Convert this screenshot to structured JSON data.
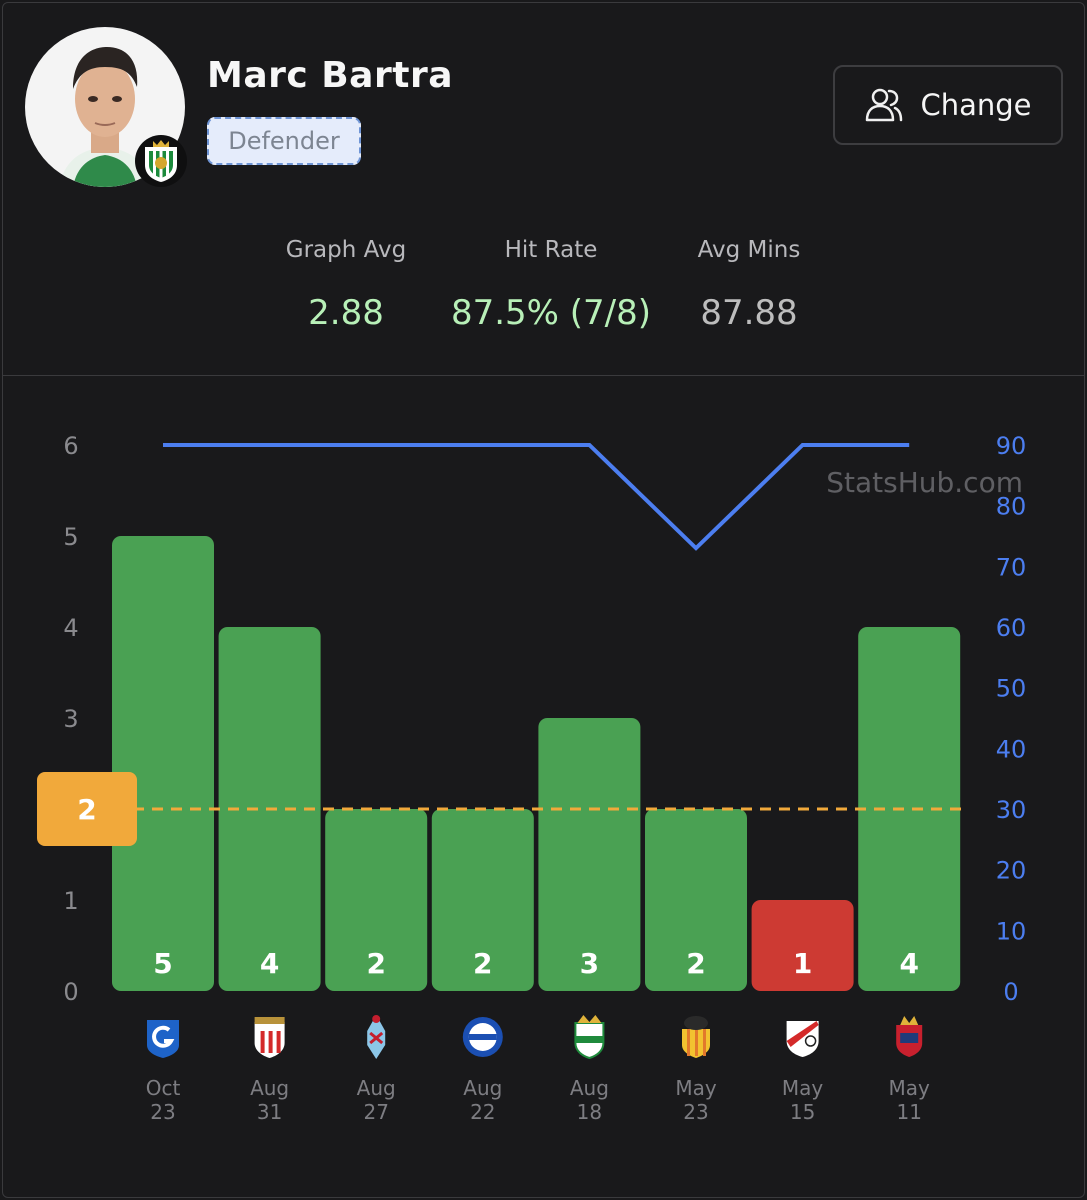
{
  "player": {
    "name": "Marc Bartra",
    "position": "Defender"
  },
  "actions": {
    "change_label": "Change"
  },
  "stats": [
    {
      "label": "Graph Avg",
      "value": "2.88",
      "tone": "green"
    },
    {
      "label": "Hit Rate",
      "value": "87.5% (7/8)",
      "tone": "green"
    },
    {
      "label": "Avg Mins",
      "value": "87.88",
      "tone": "grey"
    }
  ],
  "watermark": "StatsHub.com",
  "colors": {
    "hit": "#4aa153",
    "miss": "#cd3a33",
    "line": "#4c7ef0",
    "threshold": "#f1a93b",
    "left_axis_text": "#8a8a8e",
    "right_axis_text": "#4c7ef0"
  },
  "chart_data": {
    "type": "bar",
    "threshold": 2,
    "threshold_label": "2",
    "y_left": {
      "min": 0,
      "max": 6,
      "ticks": [
        "0",
        "1",
        "2",
        "3",
        "4",
        "5",
        "6"
      ]
    },
    "y_right": {
      "min": 0,
      "max": 90,
      "ticks": [
        "0",
        "10",
        "20",
        "30",
        "40",
        "50",
        "60",
        "70",
        "80",
        "90"
      ]
    },
    "categories": [
      {
        "month": "Oct",
        "day": "23",
        "opponent_icon": "genk-crest-icon"
      },
      {
        "month": "Aug",
        "day": "31",
        "opponent_icon": "athletic-bilbao-crest-icon"
      },
      {
        "month": "Aug",
        "day": "27",
        "opponent_icon": "celta-vigo-crest-icon"
      },
      {
        "month": "Aug",
        "day": "22",
        "opponent_icon": "alaves-crest-icon"
      },
      {
        "month": "Aug",
        "day": "18",
        "opponent_icon": "elche-crest-icon"
      },
      {
        "month": "May",
        "day": "23",
        "opponent_icon": "valencia-crest-icon"
      },
      {
        "month": "May",
        "day": "15",
        "opponent_icon": "rayo-vallecano-crest-icon"
      },
      {
        "month": "May",
        "day": "11",
        "opponent_icon": "osasuna-crest-icon"
      }
    ],
    "series": [
      {
        "values": [
          5,
          4,
          2,
          2,
          3,
          2,
          1,
          4
        ]
      },
      {
        "values": [
          90,
          90,
          90,
          90,
          90,
          73,
          90,
          90
        ]
      }
    ]
  }
}
